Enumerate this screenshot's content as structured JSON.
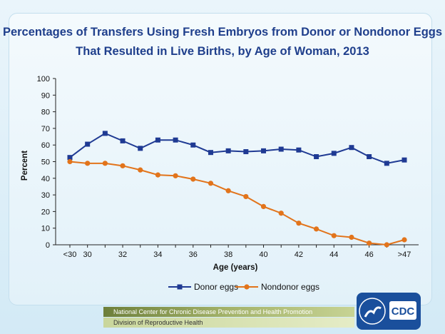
{
  "chart_data": {
    "type": "line",
    "title": "Percentages of Transfers Using Fresh Embryos from Donor or Nondonor Eggs",
    "title_line2": "That Resulted in Live Births, by Age of Woman, 2013",
    "xlabel": "Age (years)",
    "ylabel": "Percent",
    "ylim": [
      0,
      100
    ],
    "yticks": [
      0,
      10,
      20,
      30,
      40,
      50,
      60,
      70,
      80,
      90,
      100
    ],
    "categories": [
      "<30",
      "30",
      "31",
      "32",
      "33",
      "34",
      "35",
      "36",
      "37",
      "38",
      "39",
      "40",
      "41",
      "42",
      "43",
      "44",
      "45",
      "46",
      "47",
      ">47"
    ],
    "xtick_labels": [
      "<30",
      "30",
      "",
      "32",
      "",
      "34",
      "",
      "36",
      "",
      "38",
      "",
      "40",
      "",
      "42",
      "",
      "44",
      "",
      "46",
      "",
      ">47"
    ],
    "series": [
      {
        "name": "Donor eggs",
        "color": "#1f3a93",
        "marker": "square",
        "values": [
          52.5,
          60.5,
          67,
          62.5,
          58,
          63,
          63,
          60,
          55.5,
          56.5,
          56,
          56.5,
          57.5,
          57,
          53,
          55,
          58.5,
          53,
          49,
          51
        ]
      },
      {
        "name": "Nondonor eggs",
        "color": "#e2741b",
        "marker": "circle",
        "values": [
          50,
          49,
          49,
          47.5,
          45,
          42,
          41.5,
          39.5,
          37,
          32.5,
          29,
          23,
          19,
          13,
          9.5,
          5.5,
          4.5,
          1,
          0,
          3
        ]
      }
    ],
    "grid": false,
    "legend": "bottom"
  },
  "footer": {
    "line1": "National Center for Chronic Disease Prevention and Health Promotion",
    "line2": "Division of Reproductive Health"
  },
  "logo": {
    "text": "CDC"
  }
}
